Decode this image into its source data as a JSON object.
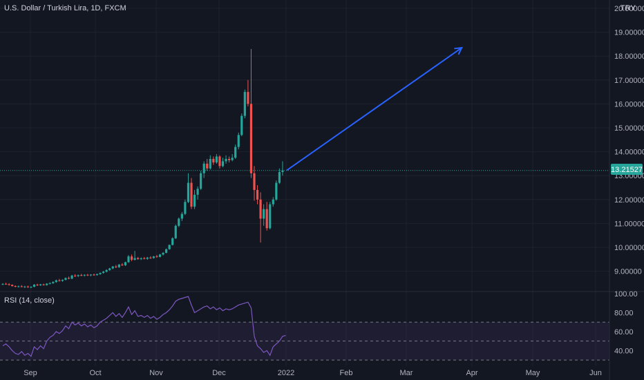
{
  "header": {
    "symbol_title": "U.S. Dollar / Turkish Lira, 1D, FXCM",
    "currency": "TRY"
  },
  "price_tag": "13.21527",
  "rsi": {
    "label": "RSI (14, close)"
  },
  "colors": {
    "background": "#131722",
    "up": "#26a69a",
    "down": "#ef5350",
    "grid": "#1e222d",
    "arrow": "#2962ff",
    "rsi_line": "#7e57c2",
    "rsi_band": "#7e57c2",
    "price_line": "#26a69a"
  },
  "chart_data": [
    {
      "type": "candlestick",
      "title": "U.S. Dollar / Turkish Lira, 1D, FXCM",
      "y_ticks": [
        "20.00000",
        "19.00000",
        "18.00000",
        "17.00000",
        "16.00000",
        "15.00000",
        "14.00000",
        "13.00000",
        "12.00000",
        "11.00000",
        "10.00000",
        "9.00000"
      ],
      "x_ticks": [
        "Sep",
        "Oct",
        "Nov",
        "Dec",
        "2022",
        "Feb",
        "Mar",
        "Apr",
        "May",
        "Jun"
      ],
      "ylim": [
        8.15,
        20.0
      ],
      "last_price": 13.21527,
      "grid": true,
      "candles": [
        {
          "o": 8.45,
          "h": 8.5,
          "l": 8.42,
          "c": 8.47
        },
        {
          "o": 8.47,
          "h": 8.52,
          "l": 8.44,
          "c": 8.46
        },
        {
          "o": 8.46,
          "h": 8.5,
          "l": 8.4,
          "c": 8.43
        },
        {
          "o": 8.43,
          "h": 8.45,
          "l": 8.36,
          "c": 8.38
        },
        {
          "o": 8.38,
          "h": 8.41,
          "l": 8.33,
          "c": 8.35
        },
        {
          "o": 8.35,
          "h": 8.4,
          "l": 8.32,
          "c": 8.37
        },
        {
          "o": 8.37,
          "h": 8.42,
          "l": 8.33,
          "c": 8.34
        },
        {
          "o": 8.34,
          "h": 8.39,
          "l": 8.3,
          "c": 8.36
        },
        {
          "o": 8.36,
          "h": 8.4,
          "l": 8.31,
          "c": 8.33
        },
        {
          "o": 8.33,
          "h": 8.37,
          "l": 8.29,
          "c": 8.35
        },
        {
          "o": 8.35,
          "h": 8.46,
          "l": 8.33,
          "c": 8.44
        },
        {
          "o": 8.44,
          "h": 8.48,
          "l": 8.38,
          "c": 8.41
        },
        {
          "o": 8.41,
          "h": 8.47,
          "l": 8.39,
          "c": 8.45
        },
        {
          "o": 8.45,
          "h": 8.48,
          "l": 8.4,
          "c": 8.42
        },
        {
          "o": 8.42,
          "h": 8.5,
          "l": 8.4,
          "c": 8.48
        },
        {
          "o": 8.48,
          "h": 8.54,
          "l": 8.45,
          "c": 8.5
        },
        {
          "o": 8.5,
          "h": 8.58,
          "l": 8.47,
          "c": 8.55
        },
        {
          "o": 8.55,
          "h": 8.65,
          "l": 8.52,
          "c": 8.62
        },
        {
          "o": 8.62,
          "h": 8.68,
          "l": 8.57,
          "c": 8.6
        },
        {
          "o": 8.6,
          "h": 8.66,
          "l": 8.56,
          "c": 8.64
        },
        {
          "o": 8.64,
          "h": 8.74,
          "l": 8.62,
          "c": 8.72
        },
        {
          "o": 8.72,
          "h": 8.78,
          "l": 8.66,
          "c": 8.69
        },
        {
          "o": 8.69,
          "h": 8.85,
          "l": 8.67,
          "c": 8.82
        },
        {
          "o": 8.82,
          "h": 8.88,
          "l": 8.76,
          "c": 8.8
        },
        {
          "o": 8.8,
          "h": 8.86,
          "l": 8.76,
          "c": 8.84
        },
        {
          "o": 8.84,
          "h": 8.89,
          "l": 8.79,
          "c": 8.82
        },
        {
          "o": 8.82,
          "h": 8.87,
          "l": 8.78,
          "c": 8.85
        },
        {
          "o": 8.85,
          "h": 8.89,
          "l": 8.8,
          "c": 8.83
        },
        {
          "o": 8.83,
          "h": 8.88,
          "l": 8.79,
          "c": 8.86
        },
        {
          "o": 8.86,
          "h": 8.9,
          "l": 8.81,
          "c": 8.84
        },
        {
          "o": 8.84,
          "h": 8.9,
          "l": 8.82,
          "c": 8.88
        },
        {
          "o": 8.88,
          "h": 8.95,
          "l": 8.85,
          "c": 8.93
        },
        {
          "o": 8.93,
          "h": 9.02,
          "l": 8.9,
          "c": 8.98
        },
        {
          "o": 8.98,
          "h": 9.08,
          "l": 8.95,
          "c": 9.05
        },
        {
          "o": 9.05,
          "h": 9.14,
          "l": 9.02,
          "c": 9.12
        },
        {
          "o": 9.12,
          "h": 9.22,
          "l": 9.08,
          "c": 9.2
        },
        {
          "o": 9.2,
          "h": 9.26,
          "l": 9.13,
          "c": 9.17
        },
        {
          "o": 9.17,
          "h": 9.3,
          "l": 9.14,
          "c": 9.28
        },
        {
          "o": 9.28,
          "h": 9.34,
          "l": 9.22,
          "c": 9.25
        },
        {
          "o": 9.25,
          "h": 9.4,
          "l": 9.22,
          "c": 9.38
        },
        {
          "o": 9.38,
          "h": 9.68,
          "l": 9.35,
          "c": 9.62
        },
        {
          "o": 9.62,
          "h": 9.7,
          "l": 9.42,
          "c": 9.48
        },
        {
          "o": 9.48,
          "h": 9.85,
          "l": 9.45,
          "c": 9.55
        },
        {
          "o": 9.55,
          "h": 9.6,
          "l": 9.48,
          "c": 9.51
        },
        {
          "o": 9.51,
          "h": 9.58,
          "l": 9.47,
          "c": 9.54
        },
        {
          "o": 9.54,
          "h": 9.6,
          "l": 9.5,
          "c": 9.52
        },
        {
          "o": 9.52,
          "h": 9.6,
          "l": 9.48,
          "c": 9.57
        },
        {
          "o": 9.57,
          "h": 9.63,
          "l": 9.52,
          "c": 9.55
        },
        {
          "o": 9.55,
          "h": 9.64,
          "l": 9.53,
          "c": 9.62
        },
        {
          "o": 9.62,
          "h": 9.68,
          "l": 9.57,
          "c": 9.6
        },
        {
          "o": 9.6,
          "h": 9.72,
          "l": 9.58,
          "c": 9.7
        },
        {
          "o": 9.7,
          "h": 9.8,
          "l": 9.66,
          "c": 9.77
        },
        {
          "o": 9.77,
          "h": 9.95,
          "l": 9.75,
          "c": 9.92
        },
        {
          "o": 9.92,
          "h": 10.12,
          "l": 9.9,
          "c": 10.1
        },
        {
          "o": 10.1,
          "h": 10.42,
          "l": 10.08,
          "c": 10.38
        },
        {
          "o": 10.38,
          "h": 10.95,
          "l": 10.35,
          "c": 10.9
        },
        {
          "o": 10.9,
          "h": 11.25,
          "l": 10.85,
          "c": 11.2
        },
        {
          "o": 11.2,
          "h": 11.48,
          "l": 11.1,
          "c": 11.4
        },
        {
          "o": 11.4,
          "h": 12.0,
          "l": 11.35,
          "c": 11.9
        },
        {
          "o": 11.9,
          "h": 13.1,
          "l": 11.85,
          "c": 12.7
        },
        {
          "o": 12.7,
          "h": 12.9,
          "l": 11.6,
          "c": 11.7
        },
        {
          "o": 11.7,
          "h": 12.4,
          "l": 11.6,
          "c": 12.2
        },
        {
          "o": 12.2,
          "h": 12.55,
          "l": 12.0,
          "c": 12.45
        },
        {
          "o": 12.45,
          "h": 13.2,
          "l": 12.4,
          "c": 13.1
        },
        {
          "o": 13.1,
          "h": 13.6,
          "l": 12.9,
          "c": 13.5
        },
        {
          "o": 13.5,
          "h": 13.7,
          "l": 13.2,
          "c": 13.3
        },
        {
          "o": 13.3,
          "h": 13.85,
          "l": 13.25,
          "c": 13.7
        },
        {
          "o": 13.7,
          "h": 13.8,
          "l": 13.45,
          "c": 13.55
        },
        {
          "o": 13.55,
          "h": 13.9,
          "l": 13.5,
          "c": 13.8
        },
        {
          "o": 13.8,
          "h": 13.85,
          "l": 13.3,
          "c": 13.4
        },
        {
          "o": 13.4,
          "h": 13.75,
          "l": 13.35,
          "c": 13.6
        },
        {
          "o": 13.6,
          "h": 13.85,
          "l": 13.5,
          "c": 13.7
        },
        {
          "o": 13.7,
          "h": 13.8,
          "l": 13.55,
          "c": 13.65
        },
        {
          "o": 13.65,
          "h": 13.9,
          "l": 13.6,
          "c": 13.75
        },
        {
          "o": 13.75,
          "h": 14.3,
          "l": 13.7,
          "c": 14.2
        },
        {
          "o": 14.2,
          "h": 14.8,
          "l": 14.1,
          "c": 14.7
        },
        {
          "o": 14.7,
          "h": 15.6,
          "l": 14.65,
          "c": 15.5
        },
        {
          "o": 15.5,
          "h": 16.6,
          "l": 15.4,
          "c": 16.5
        },
        {
          "o": 16.5,
          "h": 17.0,
          "l": 15.9,
          "c": 16.0
        },
        {
          "o": 16.0,
          "h": 18.3,
          "l": 12.9,
          "c": 13.1
        },
        {
          "o": 13.1,
          "h": 13.4,
          "l": 11.95,
          "c": 12.4
        },
        {
          "o": 12.4,
          "h": 12.6,
          "l": 11.8,
          "c": 12.0
        },
        {
          "o": 12.0,
          "h": 12.3,
          "l": 10.2,
          "c": 11.2
        },
        {
          "o": 11.2,
          "h": 11.8,
          "l": 10.9,
          "c": 11.6
        },
        {
          "o": 11.6,
          "h": 11.9,
          "l": 10.7,
          "c": 10.8
        },
        {
          "o": 10.8,
          "h": 11.9,
          "l": 10.75,
          "c": 11.8
        },
        {
          "o": 11.8,
          "h": 12.1,
          "l": 11.7,
          "c": 12.0
        },
        {
          "o": 12.0,
          "h": 12.8,
          "l": 11.95,
          "c": 12.7
        },
        {
          "o": 12.7,
          "h": 13.3,
          "l": 12.65,
          "c": 13.15
        },
        {
          "o": 13.15,
          "h": 13.6,
          "l": 13.0,
          "c": 13.22
        }
      ],
      "annotation": {
        "type": "arrow",
        "from": {
          "candle_index": 89,
          "value": 13.22
        },
        "to": {
          "candle_index": 146,
          "value": 18.35
        }
      }
    },
    {
      "type": "line",
      "title": "RSI (14, close)",
      "y_ticks": [
        "100.00",
        "80.00",
        "60.00",
        "40.00"
      ],
      "ylim": [
        25,
        100
      ],
      "bands": [
        30,
        50,
        70
      ],
      "values": [
        45,
        47,
        44,
        40,
        37,
        36,
        39,
        35,
        37,
        34,
        44,
        41,
        45,
        42,
        50,
        54,
        56,
        60,
        58,
        61,
        66,
        63,
        70,
        67,
        69,
        66,
        68,
        65,
        67,
        64,
        66,
        70,
        72,
        74,
        77,
        80,
        76,
        79,
        75,
        80,
        86,
        78,
        82,
        76,
        77,
        75,
        77,
        74,
        76,
        73,
        75,
        78,
        80,
        83,
        87,
        92,
        94,
        95,
        96,
        97,
        88,
        80,
        82,
        84,
        86,
        87,
        84,
        86,
        83,
        85,
        82,
        84,
        83,
        84,
        86,
        88,
        89,
        90,
        91,
        85,
        55,
        45,
        42,
        38,
        40,
        35,
        44,
        47,
        50,
        55,
        56
      ]
    }
  ]
}
